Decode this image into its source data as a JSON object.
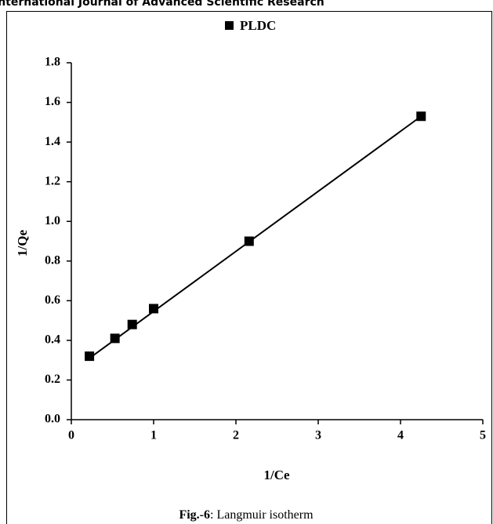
{
  "header": {
    "text": "International Journal of Advanced Scientific Research"
  },
  "chart_data": {
    "type": "scatter",
    "x_label": "1/Ce",
    "y_label": "1/Qe",
    "series": [
      {
        "name": "PLDC",
        "color": "#000000",
        "x": [
          0.22,
          0.53,
          0.74,
          1.0,
          2.16,
          4.25
        ],
        "values": [
          0.32,
          0.41,
          0.48,
          0.56,
          0.9,
          1.53
        ]
      }
    ],
    "trendline": {
      "x": [
        0.22,
        4.25
      ],
      "values": [
        0.31,
        1.53
      ],
      "color": "#000000"
    },
    "xlim": [
      0,
      5
    ],
    "xticks": [
      0,
      1,
      2,
      3,
      4,
      5
    ],
    "ylim": [
      0,
      1.8
    ],
    "yticks": [
      {
        "value": 0,
        "label": "0.0"
      },
      0.2,
      0.4,
      0.6,
      0.8,
      {
        "value": 1,
        "label": "1.0"
      },
      1.2,
      1.4,
      1.6,
      1.8
    ],
    "legend": "top",
    "caption": {
      "label": "Fig.-6",
      "text": ": Langmuir isotherm"
    }
  }
}
